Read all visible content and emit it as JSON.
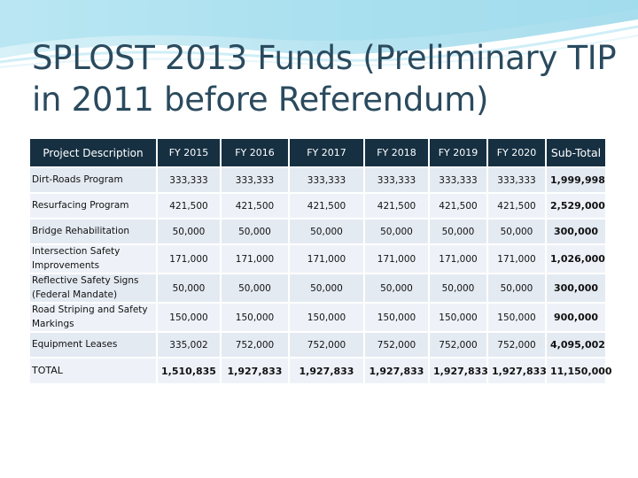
{
  "slide": {
    "title": "SPLOST 2013 Funds (Preliminary TIP in 2011 before Referendum)"
  },
  "table": {
    "headers": [
      "Project Description",
      "FY 2015",
      "FY 2016",
      "FY 2017",
      "FY 2018",
      "FY 2019",
      "FY 2020",
      "Sub-Total"
    ],
    "rows": [
      {
        "desc": "Dirt-Roads Program",
        "values": [
          "333,333",
          "333,333",
          "333,333",
          "333,333",
          "333,333",
          "333,333"
        ],
        "subtotal": "1,999,998"
      },
      {
        "desc": "Resurfacing Program",
        "values": [
          "421,500",
          "421,500",
          "421,500",
          "421,500",
          "421,500",
          "421,500"
        ],
        "subtotal": "2,529,000"
      },
      {
        "desc": "Bridge Rehabilitation",
        "values": [
          "50,000",
          "50,000",
          "50,000",
          "50,000",
          "50,000",
          "50,000"
        ],
        "subtotal": "300,000"
      },
      {
        "desc": "Intersection Safety Improvements",
        "values": [
          "171,000",
          "171,000",
          "171,000",
          "171,000",
          "171,000",
          "171,000"
        ],
        "subtotal": "1,026,000"
      },
      {
        "desc": "Reflective Safety Signs (Federal Mandate)",
        "values": [
          "50,000",
          "50,000",
          "50,000",
          "50,000",
          "50,000",
          "50,000"
        ],
        "subtotal": "300,000"
      },
      {
        "desc": "Road Striping and Safety Markings",
        "values": [
          "150,000",
          "150,000",
          "150,000",
          "150,000",
          "150,000",
          "150,000"
        ],
        "subtotal": "900,000"
      },
      {
        "desc": "Equipment Leases",
        "values": [
          "335,002",
          "752,000",
          "752,000",
          "752,000",
          "752,000",
          "752,000"
        ],
        "subtotal": "4,095,002"
      }
    ],
    "total": {
      "desc": "TOTAL",
      "values": [
        "1,510,835",
        "1,927,833",
        "1,927,833",
        "1,927,833",
        "1,927,833",
        "1,927,833"
      ],
      "subtotal": "11,150,000"
    }
  },
  "colors": {
    "header_bg": "#163042",
    "row_bg": "#e4eaf2",
    "row_alt_bg": "#eef2f8",
    "title": "#2a4a5e",
    "wave": "#8fd4e8"
  }
}
